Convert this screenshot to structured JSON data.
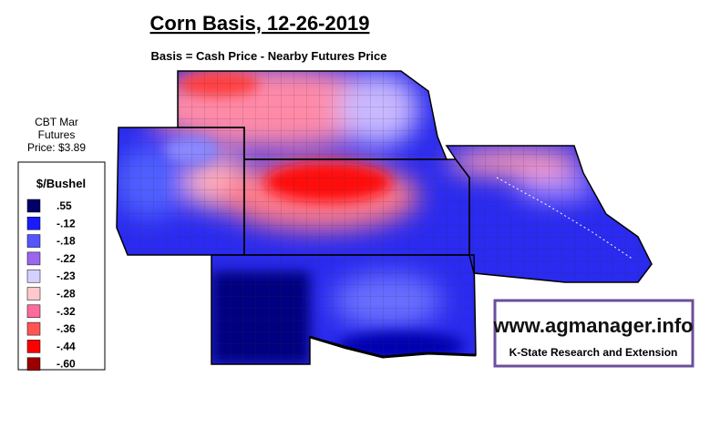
{
  "header": {
    "title": "Corn Basis, 12-26-2019",
    "subtitle": "Basis = Cash Price - Nearby Futures Price"
  },
  "futures": {
    "lines": [
      "CBT Mar",
      "Futures",
      "Price: $3.89"
    ]
  },
  "legend": {
    "title": "$/Bushel",
    "items": [
      {
        "label": ".55",
        "color": "#000066"
      },
      {
        "label": "-.12",
        "color": "#1a1aff"
      },
      {
        "label": "-.18",
        "color": "#5555ff"
      },
      {
        "label": "-.22",
        "color": "#9a66ee"
      },
      {
        "label": "-.23",
        "color": "#d4d0ff"
      },
      {
        "label": "-.28",
        "color": "#ffc8cc"
      },
      {
        "label": "-.32",
        "color": "#ff6a9a"
      },
      {
        "label": "-.36",
        "color": "#ff5555"
      },
      {
        "label": "-.44",
        "color": "#ff0000"
      },
      {
        "label": "-.60",
        "color": "#9a0000"
      }
    ]
  },
  "logo": {
    "url": "www.agmanager.info",
    "org": "K-State Research and Extension"
  }
}
